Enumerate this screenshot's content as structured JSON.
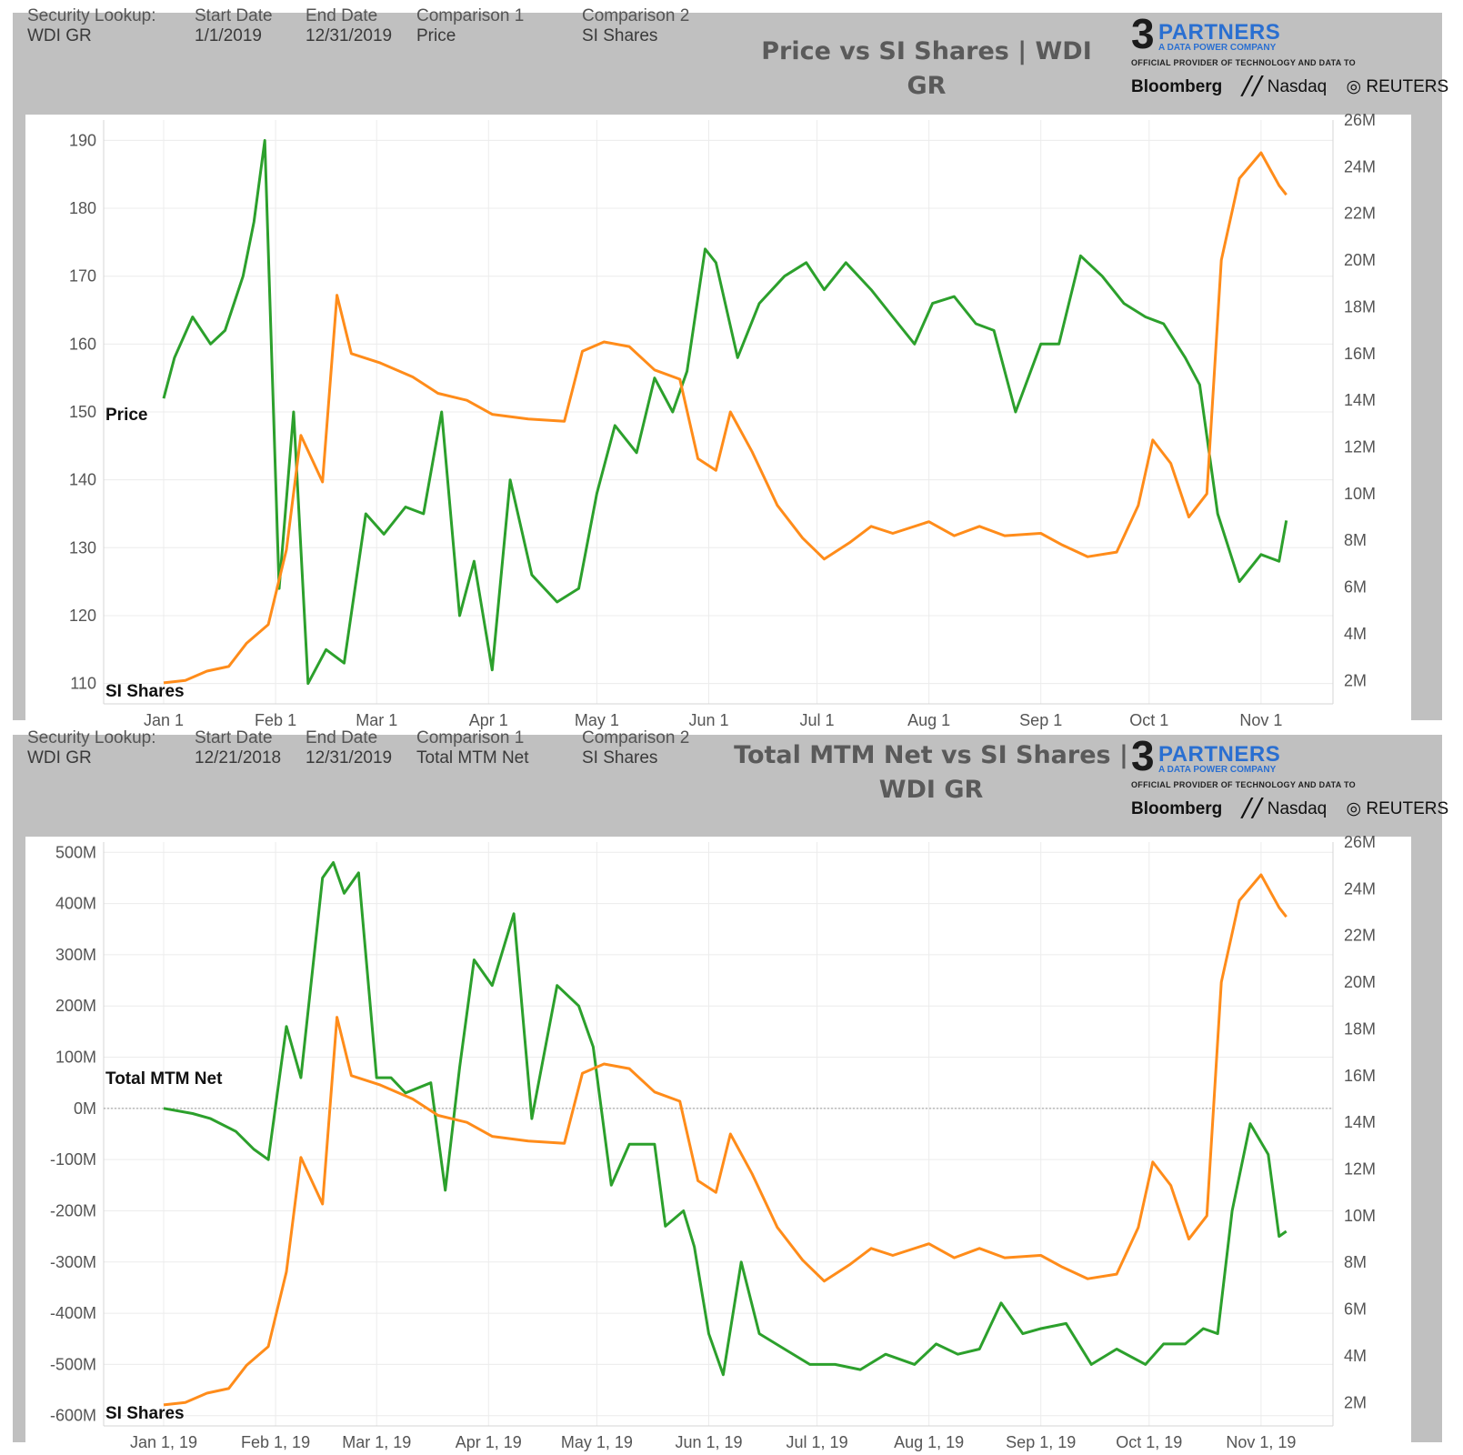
{
  "colors": {
    "price_series": "#2ca02c",
    "si_series": "#ff8c1a",
    "panel_bg": "#c0c0c0",
    "grid": "#ececec"
  },
  "logo": {
    "number": "3",
    "brand": "PARTNERS",
    "tagline": "A DATA POWER COMPANY",
    "provider": "OFFICIAL PROVIDER OF TECHNOLOGY AND DATA TO",
    "partners": [
      "Bloomberg",
      "Nasdaq",
      "REUTERS"
    ]
  },
  "panel1": {
    "headers": [
      "Security Lookup:",
      "Start Date",
      "End Date",
      "Comparison 1",
      "Comparison 2"
    ],
    "values": [
      "WDI GR",
      "1/1/2019",
      "12/31/2019",
      "Price",
      "SI Shares"
    ],
    "title": "Price vs SI Shares | WDI GR",
    "left_series_label": "Price",
    "right_series_label": "SI Shares"
  },
  "panel2": {
    "headers": [
      "Security Lookup:",
      "Start Date",
      "End Date",
      "Comparison 1",
      "Comparison 2"
    ],
    "values": [
      "WDI GR",
      "12/21/2018",
      "12/31/2019",
      "Total MTM Net",
      "SI Shares"
    ],
    "title_line1": "Total MTM Net vs SI Shares |",
    "title_line2": "WDI GR",
    "left_series_label": "Total MTM Net",
    "right_series_label": "SI Shares"
  },
  "chart_data": [
    {
      "type": "line",
      "title": "Price vs SI Shares | WDI GR",
      "x_ticks": [
        "Jan 1",
        "Feb 1",
        "Mar 1",
        "Apr 1",
        "May 1",
        "Jun 1",
        "Jul 1",
        "Aug 1",
        "Sep 1",
        "Oct 1",
        "Nov 1"
      ],
      "y_left": {
        "label": "Price",
        "ticks": [
          110,
          120,
          130,
          140,
          150,
          160,
          170,
          180,
          190
        ],
        "range": [
          107,
          193
        ]
      },
      "y_right": {
        "label": "SI Shares",
        "ticks": [
          "2M",
          "4M",
          "6M",
          "8M",
          "10M",
          "12M",
          "14M",
          "16M",
          "18M",
          "20M",
          "22M",
          "24M",
          "26M"
        ],
        "range": [
          1,
          26
        ]
      },
      "grid": true,
      "series": [
        {
          "name": "Price",
          "axis": "left",
          "x": [
            "2019-01-01",
            "2019-01-04",
            "2019-01-09",
            "2019-01-14",
            "2019-01-18",
            "2019-01-23",
            "2019-01-26",
            "2019-01-29",
            "2019-02-02",
            "2019-02-06",
            "2019-02-10",
            "2019-02-15",
            "2019-02-20",
            "2019-02-26",
            "2019-03-03",
            "2019-03-09",
            "2019-03-14",
            "2019-03-19",
            "2019-03-24",
            "2019-03-28",
            "2019-04-02",
            "2019-04-07",
            "2019-04-13",
            "2019-04-20",
            "2019-04-26",
            "2019-05-01",
            "2019-05-06",
            "2019-05-12",
            "2019-05-17",
            "2019-05-22",
            "2019-05-26",
            "2019-05-31",
            "2019-06-03",
            "2019-06-09",
            "2019-06-15",
            "2019-06-22",
            "2019-06-28",
            "2019-07-03",
            "2019-07-09",
            "2019-07-16",
            "2019-07-22",
            "2019-07-28",
            "2019-08-02",
            "2019-08-08",
            "2019-08-14",
            "2019-08-19",
            "2019-08-25",
            "2019-09-01",
            "2019-09-06",
            "2019-09-12",
            "2019-09-18",
            "2019-09-24",
            "2019-09-30",
            "2019-10-05",
            "2019-10-11",
            "2019-10-15",
            "2019-10-20",
            "2019-10-26",
            "2019-11-01",
            "2019-11-06",
            "2019-11-08"
          ],
          "y": [
            152,
            158,
            164,
            160,
            162,
            170,
            178,
            190,
            124,
            150,
            110,
            115,
            113,
            135,
            132,
            136,
            135,
            150,
            120,
            128,
            112,
            140,
            126,
            122,
            124,
            138,
            148,
            144,
            155,
            150,
            156,
            174,
            172,
            158,
            166,
            170,
            172,
            168,
            172,
            168,
            164,
            160,
            166,
            167,
            163,
            162,
            150,
            160,
            160,
            173,
            170,
            166,
            164,
            163,
            158,
            154,
            135,
            125,
            129,
            128,
            134
          ]
        },
        {
          "name": "SI Shares",
          "axis": "right",
          "x": [
            "2019-01-01",
            "2019-01-07",
            "2019-01-13",
            "2019-01-19",
            "2019-01-24",
            "2019-01-30",
            "2019-02-04",
            "2019-02-08",
            "2019-02-14",
            "2019-02-18",
            "2019-02-22",
            "2019-03-02",
            "2019-03-11",
            "2019-03-18",
            "2019-03-26",
            "2019-04-02",
            "2019-04-12",
            "2019-04-22",
            "2019-04-27",
            "2019-05-03",
            "2019-05-10",
            "2019-05-17",
            "2019-05-24",
            "2019-05-29",
            "2019-06-03",
            "2019-06-07",
            "2019-06-13",
            "2019-06-20",
            "2019-06-27",
            "2019-07-03",
            "2019-07-10",
            "2019-07-16",
            "2019-07-22",
            "2019-08-01",
            "2019-08-08",
            "2019-08-15",
            "2019-08-22",
            "2019-09-01",
            "2019-09-07",
            "2019-09-14",
            "2019-09-22",
            "2019-09-28",
            "2019-10-02",
            "2019-10-07",
            "2019-10-12",
            "2019-10-17",
            "2019-10-21",
            "2019-10-26",
            "2019-11-01",
            "2019-11-06",
            "2019-11-08"
          ],
          "y": [
            1.9,
            2.0,
            2.4,
            2.6,
            3.6,
            4.4,
            7.6,
            12.5,
            10.5,
            18.5,
            16.0,
            15.6,
            15.0,
            14.3,
            14.0,
            13.4,
            13.2,
            13.1,
            16.1,
            16.5,
            16.3,
            15.3,
            14.9,
            11.5,
            11.0,
            13.5,
            11.8,
            9.5,
            8.1,
            7.2,
            7.9,
            8.6,
            8.3,
            8.8,
            8.2,
            8.6,
            8.2,
            8.3,
            7.8,
            7.3,
            7.5,
            9.5,
            12.3,
            11.3,
            9.0,
            10.0,
            20.0,
            23.5,
            24.6,
            23.2,
            22.8
          ]
        }
      ]
    },
    {
      "type": "line",
      "title": "Total MTM Net vs SI Shares | WDI GR",
      "x_ticks": [
        "Jan 1, 19",
        "Feb 1, 19",
        "Mar 1, 19",
        "Apr 1, 19",
        "May 1, 19",
        "Jun 1, 19",
        "Jul 1, 19",
        "Aug 1, 19",
        "Sep 1, 19",
        "Oct 1, 19",
        "Nov 1, 19"
      ],
      "y_left": {
        "label": "Total MTM Net",
        "ticks": [
          "500M",
          "400M",
          "300M",
          "200M",
          "100M",
          "0M",
          "-100M",
          "-200M",
          "-300M",
          "-400M",
          "-500M",
          "-600M"
        ],
        "values": [
          500,
          400,
          300,
          200,
          100,
          0,
          -100,
          -200,
          -300,
          -400,
          -500,
          -600
        ],
        "range": [
          -620,
          520
        ]
      },
      "y_right": {
        "label": "SI Shares",
        "ticks": [
          "2M",
          "4M",
          "6M",
          "8M",
          "10M",
          "12M",
          "14M",
          "16M",
          "18M",
          "20M",
          "22M",
          "24M",
          "26M"
        ],
        "range": [
          1,
          26
        ]
      },
      "grid": true,
      "zero_line": true,
      "series": [
        {
          "name": "Total MTM Net",
          "axis": "left",
          "x": [
            "2019-01-01",
            "2019-01-09",
            "2019-01-14",
            "2019-01-21",
            "2019-01-26",
            "2019-01-30",
            "2019-02-04",
            "2019-02-08",
            "2019-02-14",
            "2019-02-17",
            "2019-02-20",
            "2019-02-24",
            "2019-03-01",
            "2019-03-05",
            "2019-03-09",
            "2019-03-16",
            "2019-03-20",
            "2019-03-24",
            "2019-03-28",
            "2019-04-02",
            "2019-04-08",
            "2019-04-13",
            "2019-04-20",
            "2019-04-26",
            "2019-04-30",
            "2019-05-05",
            "2019-05-10",
            "2019-05-17",
            "2019-05-20",
            "2019-05-25",
            "2019-05-28",
            "2019-06-01",
            "2019-06-05",
            "2019-06-10",
            "2019-06-15",
            "2019-06-22",
            "2019-06-29",
            "2019-07-06",
            "2019-07-13",
            "2019-07-20",
            "2019-07-28",
            "2019-08-03",
            "2019-08-09",
            "2019-08-15",
            "2019-08-21",
            "2019-08-27",
            "2019-09-01",
            "2019-09-08",
            "2019-09-15",
            "2019-09-22",
            "2019-09-30",
            "2019-10-05",
            "2019-10-11",
            "2019-10-16",
            "2019-10-20",
            "2019-10-24",
            "2019-10-29",
            "2019-11-03",
            "2019-11-06",
            "2019-11-08"
          ],
          "y": [
            0,
            -10,
            -20,
            -45,
            -80,
            -100,
            160,
            60,
            450,
            480,
            420,
            460,
            60,
            60,
            30,
            50,
            -160,
            80,
            290,
            240,
            380,
            -20,
            240,
            200,
            120,
            -150,
            -70,
            -70,
            -230,
            -200,
            -270,
            -440,
            -520,
            -300,
            -440,
            -470,
            -500,
            -500,
            -510,
            -480,
            -500,
            -460,
            -480,
            -470,
            -380,
            -440,
            -430,
            -420,
            -500,
            -470,
            -500,
            -460,
            -460,
            -430,
            -440,
            -200,
            -30,
            -90,
            -250,
            -240
          ]
        },
        {
          "name": "SI Shares",
          "axis": "right",
          "x": [
            "2019-01-01",
            "2019-01-07",
            "2019-01-13",
            "2019-01-19",
            "2019-01-24",
            "2019-01-30",
            "2019-02-04",
            "2019-02-08",
            "2019-02-14",
            "2019-02-18",
            "2019-02-22",
            "2019-03-02",
            "2019-03-11",
            "2019-03-18",
            "2019-03-26",
            "2019-04-02",
            "2019-04-12",
            "2019-04-22",
            "2019-04-27",
            "2019-05-03",
            "2019-05-10",
            "2019-05-17",
            "2019-05-24",
            "2019-05-29",
            "2019-06-03",
            "2019-06-07",
            "2019-06-13",
            "2019-06-20",
            "2019-06-27",
            "2019-07-03",
            "2019-07-10",
            "2019-07-16",
            "2019-07-22",
            "2019-08-01",
            "2019-08-08",
            "2019-08-15",
            "2019-08-22",
            "2019-09-01",
            "2019-09-07",
            "2019-09-14",
            "2019-09-22",
            "2019-09-28",
            "2019-10-02",
            "2019-10-07",
            "2019-10-12",
            "2019-10-17",
            "2019-10-21",
            "2019-10-26",
            "2019-11-01",
            "2019-11-06",
            "2019-11-08"
          ],
          "y": [
            1.9,
            2.0,
            2.4,
            2.6,
            3.6,
            4.4,
            7.6,
            12.5,
            10.5,
            18.5,
            16.0,
            15.6,
            15.0,
            14.3,
            14.0,
            13.4,
            13.2,
            13.1,
            16.1,
            16.5,
            16.3,
            15.3,
            14.9,
            11.5,
            11.0,
            13.5,
            11.8,
            9.5,
            8.1,
            7.2,
            7.9,
            8.6,
            8.3,
            8.8,
            8.2,
            8.6,
            8.2,
            8.3,
            7.8,
            7.3,
            7.5,
            9.5,
            12.3,
            11.3,
            9.0,
            10.0,
            20.0,
            23.5,
            24.6,
            23.2,
            22.8
          ]
        }
      ]
    }
  ]
}
